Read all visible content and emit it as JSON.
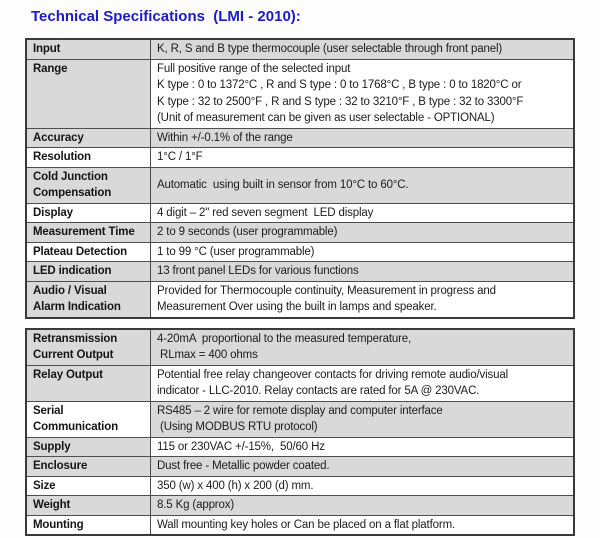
{
  "title": "Technical Specifications  (LMI - 2010):",
  "colors": {
    "title_blue": "#1b1bc8",
    "row_shade_gray": "#d9d9d9",
    "row_shade_white": "#ffffff",
    "border": "#3a3a3a"
  },
  "table1": {
    "rows": [
      {
        "label": "Input",
        "value": "K, R, S and B type thermocouple (user selectable through front panel)"
      },
      {
        "label": "Range",
        "value": "Full positive range of the selected input\nK type : 0 to 1372°C , R and S type : 0 to 1768°C , B type : 0 to 1820°C or\nK type : 32 to 2500°F , R and S type : 32 to 3210°F , B type : 32 to 3300°F\n(Unit of measurement can be given as user selectable - OPTIONAL)"
      },
      {
        "label": "Accuracy",
        "value": "Within +/-0.1% of the range"
      },
      {
        "label": "Resolution",
        "value": "1°C / 1°F"
      },
      {
        "label": "Cold Junction\nCompensation",
        "value": "Automatic  using built in sensor from 10°C to 60°C."
      },
      {
        "label": "Display",
        "value": "4 digit – 2\" red seven segment  LED display"
      },
      {
        "label": "Measurement Time",
        "value": "2 to 9 seconds (user programmable)"
      },
      {
        "label": "Plateau Detection",
        "value": "1 to 99 °C (user programmable)"
      },
      {
        "label": "LED indication",
        "value": "13 front panel LEDs for various functions"
      },
      {
        "label": "Audio / Visual\nAlarm Indication",
        "value": "Provided for Thermocouple continuity, Measurement in progress and\nMeasurement Over using the built in lamps and speaker."
      }
    ]
  },
  "table2": {
    "rows": [
      {
        "label": "Retransmission\nCurrent Output",
        "value": "4-20mA  proportional to the measured temperature,\n RLmax = 400 ohms"
      },
      {
        "label": "Relay Output",
        "value": "Potential free relay changeover contacts for driving remote audio/visual\nindicator - LLC-2010. Relay contacts are rated for 5A @ 230VAC."
      },
      {
        "label": "Serial\nCommunication",
        "value": "RS485 – 2 wire for remote display and computer interface\n (Using MODBUS RTU protocol)"
      },
      {
        "label": "Supply",
        "value": "115 or 230VAC +/-15%,  50/60 Hz"
      },
      {
        "label": "Enclosure",
        "value": "Dust free - Metallic powder coated."
      },
      {
        "label": "Size",
        "value": "350 (w) x 400 (h) x 200 (d) mm."
      },
      {
        "label": "Weight",
        "value": "8.5 Kg (approx)"
      },
      {
        "label": "Mounting",
        "value": "Wall mounting key holes or Can be placed on a flat platform."
      }
    ]
  }
}
